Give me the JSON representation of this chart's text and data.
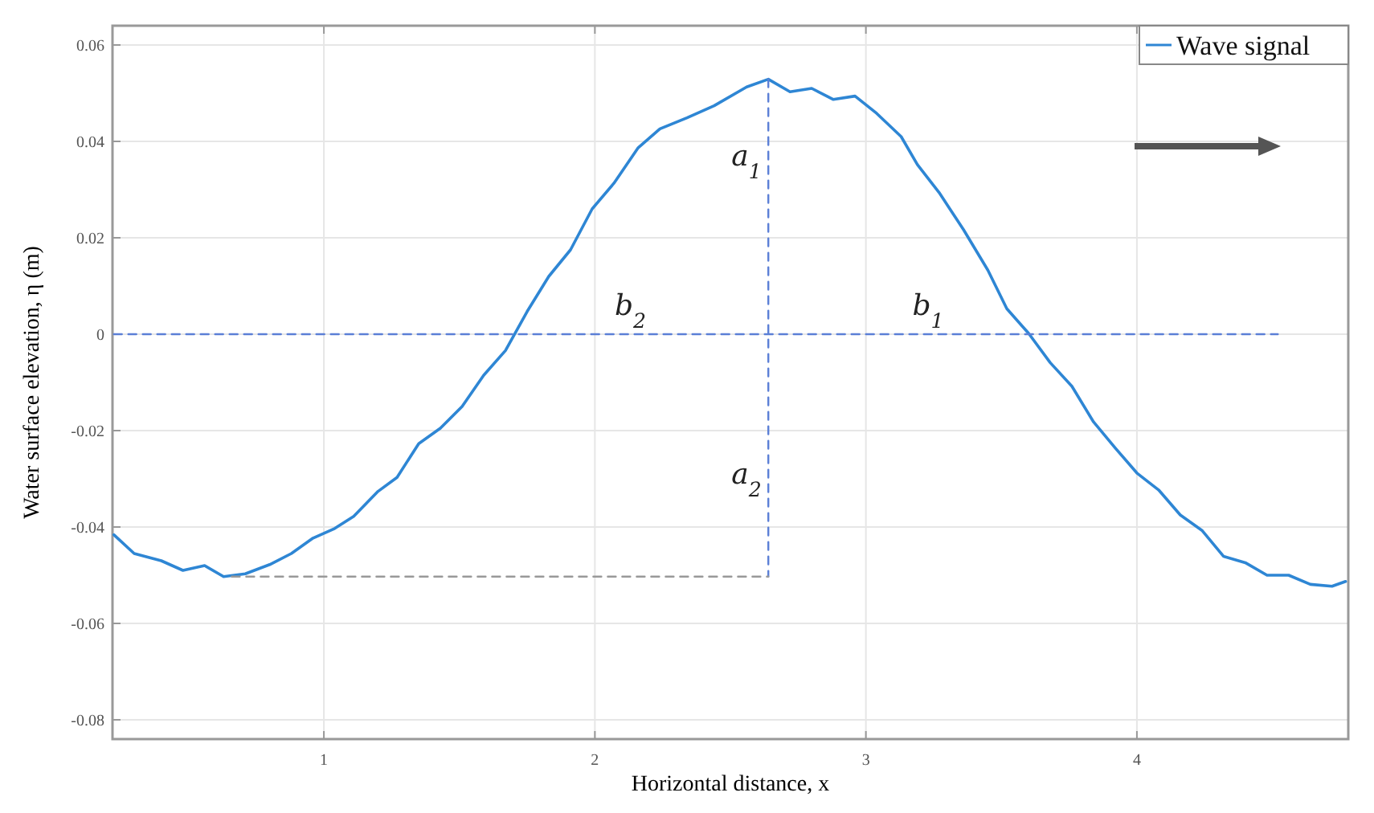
{
  "chart_data": {
    "type": "line",
    "xlabel": "Horizontal distance, x",
    "ylabel": "Water surface elevation, η (m)",
    "xlim": [
      0.22,
      4.78
    ],
    "ylim": [
      -0.084,
      0.064
    ],
    "xticks": [
      1,
      2,
      3,
      4
    ],
    "yticks": [
      -0.08,
      -0.06,
      -0.04,
      -0.02,
      0,
      0.02,
      0.04,
      0.06
    ],
    "grid": true,
    "legend": "top right",
    "series": [
      {
        "name": "Wave signal",
        "color": "#2e86d4",
        "line_style": "solid",
        "x": [
          0.225,
          0.3,
          0.4,
          0.48,
          0.56,
          0.63,
          0.71,
          0.8,
          0.88,
          0.96,
          1.04,
          1.11,
          1.2,
          1.27,
          1.35,
          1.43,
          1.51,
          1.59,
          1.67,
          1.75,
          1.83,
          1.91,
          1.99,
          2.07,
          2.16,
          2.24,
          2.34,
          2.44,
          2.56,
          2.64,
          2.72,
          2.8,
          2.88,
          2.96,
          3.04,
          3.13,
          3.19,
          3.27,
          3.36,
          3.45,
          3.52,
          3.6,
          3.68,
          3.76,
          3.84,
          3.92,
          4.0,
          4.08,
          4.16,
          4.24,
          4.32,
          4.4,
          4.48,
          4.56,
          4.64,
          4.72,
          4.77
        ],
        "values": [
          -0.0416,
          -0.0455,
          -0.047,
          -0.049,
          -0.048,
          -0.0503,
          -0.0497,
          -0.0478,
          -0.0455,
          -0.0423,
          -0.0403,
          -0.0378,
          -0.0326,
          -0.0297,
          -0.0227,
          -0.0195,
          -0.015,
          -0.0085,
          -0.0034,
          0.0047,
          0.012,
          0.0175,
          0.026,
          0.0313,
          0.0387,
          0.0426,
          0.0449,
          0.0474,
          0.0513,
          0.0529,
          0.0503,
          0.051,
          0.0487,
          0.0494,
          0.0458,
          0.041,
          0.0352,
          0.0294,
          0.0217,
          0.0133,
          0.0053,
          0.0002,
          -0.0059,
          -0.0108,
          -0.0182,
          -0.0236,
          -0.0288,
          -0.0323,
          -0.0375,
          -0.0407,
          -0.0461,
          -0.0474,
          -0.05,
          -0.05,
          -0.0519,
          -0.0523,
          -0.0513
        ]
      },
      {
        "color": "#5b7fd6",
        "line_style": "dashed",
        "x": [
          0.225,
          4.52
        ],
        "values": [
          0,
          0
        ]
      },
      {
        "color": "#5b7fd6",
        "line_style": "dashed",
        "x": [
          2.64,
          2.64
        ],
        "values": [
          0.0529,
          -0.0503
        ]
      },
      {
        "color": "#999999",
        "line_style": "dashed",
        "x": [
          0.66,
          2.64
        ],
        "values": [
          -0.0503,
          -0.0503
        ]
      }
    ],
    "annotations": [
      "a$_{1}$",
      "b$_{2}$",
      "b$_{1}$",
      "a$_{2}$"
    ]
  }
}
